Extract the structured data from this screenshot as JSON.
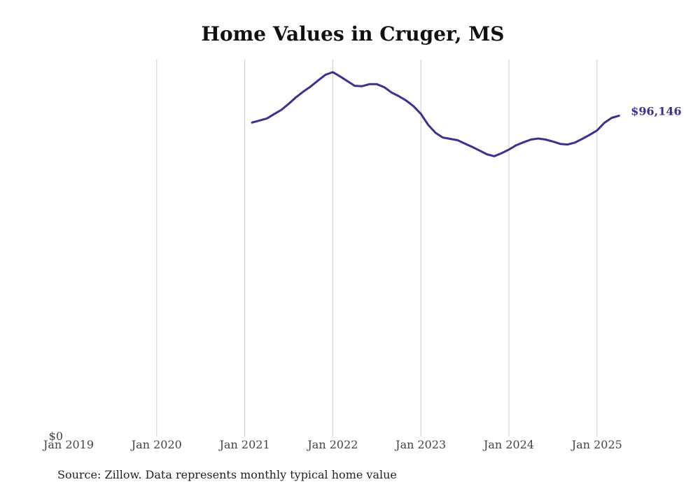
{
  "chart_data": {
    "type": "line",
    "title": "Home Values in Cruger, MS",
    "xlabel": "",
    "ylabel": "",
    "x_ticks": [
      "Jan 2019",
      "Jan 2020",
      "Jan 2021",
      "Jan 2022",
      "Jan 2023",
      "Jan 2024",
      "Jan 2025"
    ],
    "y_ticks": [
      "$0"
    ],
    "xlim": [
      "2019-01",
      "2025-05"
    ],
    "ylim": [
      0,
      113000
    ],
    "grid": "vertical",
    "line_color": "#3b3190",
    "end_label": "$96,146",
    "series": [
      {
        "x": [
          "2021-02",
          "2021-03",
          "2021-04",
          "2021-05",
          "2021-06",
          "2021-07",
          "2021-08",
          "2021-09",
          "2021-10",
          "2021-11",
          "2021-12",
          "2022-01",
          "2022-02",
          "2022-03",
          "2022-04",
          "2022-05",
          "2022-06",
          "2022-07",
          "2022-08",
          "2022-09",
          "2022-10",
          "2022-11",
          "2022-12",
          "2023-01",
          "2023-02",
          "2023-03",
          "2023-04",
          "2023-05",
          "2023-06",
          "2023-07",
          "2023-08",
          "2023-09",
          "2023-10",
          "2023-11",
          "2023-12",
          "2024-01",
          "2024-02",
          "2024-03",
          "2024-04",
          "2024-05",
          "2024-06",
          "2024-07",
          "2024-08",
          "2024-09",
          "2024-10",
          "2024-11",
          "2024-12",
          "2025-01",
          "2025-02",
          "2025-03",
          "2025-04"
        ],
        "y": [
          94100,
          94700,
          95300,
          96600,
          97900,
          99700,
          101700,
          103400,
          104900,
          106700,
          108400,
          109200,
          107900,
          106500,
          105100,
          105000,
          105600,
          105600,
          104700,
          103100,
          102000,
          100700,
          99000,
          96700,
          93400,
          91000,
          89600,
          89200,
          88800,
          87800,
          86800,
          85700,
          84600,
          84000,
          84900,
          86000,
          87300,
          88200,
          89000,
          89300,
          89000,
          88400,
          87700,
          87500,
          88100,
          89200,
          90400,
          91700,
          94000,
          95500,
          96146
        ]
      }
    ]
  },
  "source": "Source: Zillow. Data represents monthly typical home value"
}
